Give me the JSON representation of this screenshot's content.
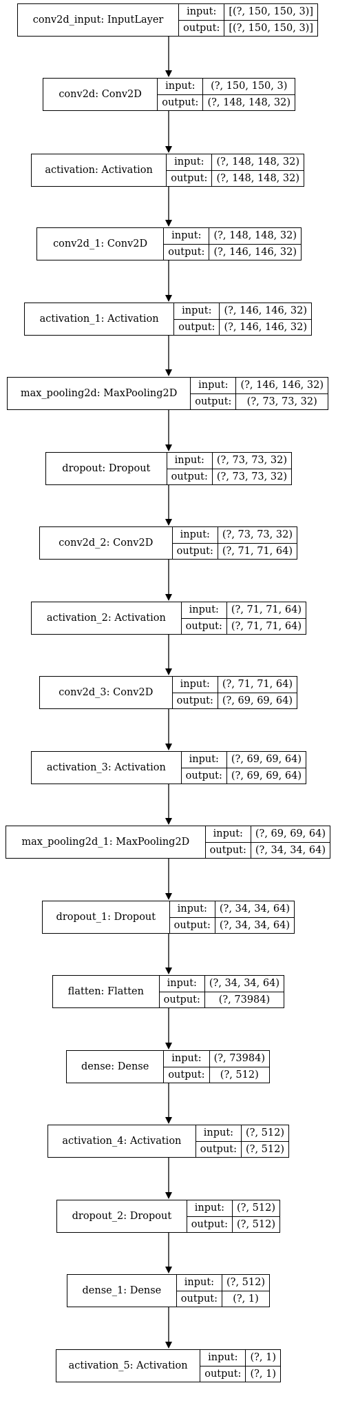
{
  "diagram": {
    "type": "keras-model-plot",
    "layers": [
      {
        "name": "conv2d_input: InputLayer",
        "input_label": "input:",
        "output_label": "output:",
        "input": "[(?, 150, 150, 3)]",
        "output": "[(?, 150, 150, 3)]"
      },
      {
        "name": "conv2d: Conv2D",
        "input_label": "input:",
        "output_label": "output:",
        "input": "(?, 150, 150, 3)",
        "output": "(?, 148, 148, 32)"
      },
      {
        "name": "activation: Activation",
        "input_label": "input:",
        "output_label": "output:",
        "input": "(?, 148, 148, 32)",
        "output": "(?, 148, 148, 32)"
      },
      {
        "name": "conv2d_1: Conv2D",
        "input_label": "input:",
        "output_label": "output:",
        "input": "(?, 148, 148, 32)",
        "output": "(?, 146, 146, 32)"
      },
      {
        "name": "activation_1: Activation",
        "input_label": "input:",
        "output_label": "output:",
        "input": "(?, 146, 146, 32)",
        "output": "(?, 146, 146, 32)"
      },
      {
        "name": "max_pooling2d: MaxPooling2D",
        "input_label": "input:",
        "output_label": "output:",
        "input": "(?, 146, 146, 32)",
        "output": "(?, 73, 73, 32)"
      },
      {
        "name": "dropout: Dropout",
        "input_label": "input:",
        "output_label": "output:",
        "input": "(?, 73, 73, 32)",
        "output": "(?, 73, 73, 32)"
      },
      {
        "name": "conv2d_2: Conv2D",
        "input_label": "input:",
        "output_label": "output:",
        "input": "(?, 73, 73, 32)",
        "output": "(?, 71, 71, 64)"
      },
      {
        "name": "activation_2: Activation",
        "input_label": "input:",
        "output_label": "output:",
        "input": "(?, 71, 71, 64)",
        "output": "(?, 71, 71, 64)"
      },
      {
        "name": "conv2d_3: Conv2D",
        "input_label": "input:",
        "output_label": "output:",
        "input": "(?, 71, 71, 64)",
        "output": "(?, 69, 69, 64)"
      },
      {
        "name": "activation_3: Activation",
        "input_label": "input:",
        "output_label": "output:",
        "input": "(?, 69, 69, 64)",
        "output": "(?, 69, 69, 64)"
      },
      {
        "name": "max_pooling2d_1: MaxPooling2D",
        "input_label": "input:",
        "output_label": "output:",
        "input": "(?, 69, 69, 64)",
        "output": "(?, 34, 34, 64)"
      },
      {
        "name": "dropout_1: Dropout",
        "input_label": "input:",
        "output_label": "output:",
        "input": "(?, 34, 34, 64)",
        "output": "(?, 34, 34, 64)"
      },
      {
        "name": "flatten: Flatten",
        "input_label": "input:",
        "output_label": "output:",
        "input": "(?, 34, 34, 64)",
        "output": "(?, 73984)"
      },
      {
        "name": "dense: Dense",
        "input_label": "input:",
        "output_label": "output:",
        "input": "(?, 73984)",
        "output": "(?, 512)"
      },
      {
        "name": "activation_4: Activation",
        "input_label": "input:",
        "output_label": "output:",
        "input": "(?, 512)",
        "output": "(?, 512)"
      },
      {
        "name": "dropout_2: Dropout",
        "input_label": "input:",
        "output_label": "output:",
        "input": "(?, 512)",
        "output": "(?, 512)"
      },
      {
        "name": "dense_1: Dense",
        "input_label": "input:",
        "output_label": "output:",
        "input": "(?, 512)",
        "output": "(?, 1)"
      },
      {
        "name": "activation_5: Activation",
        "input_label": "input:",
        "output_label": "output:",
        "input": "(?, 1)",
        "output": "(?, 1)"
      }
    ]
  }
}
